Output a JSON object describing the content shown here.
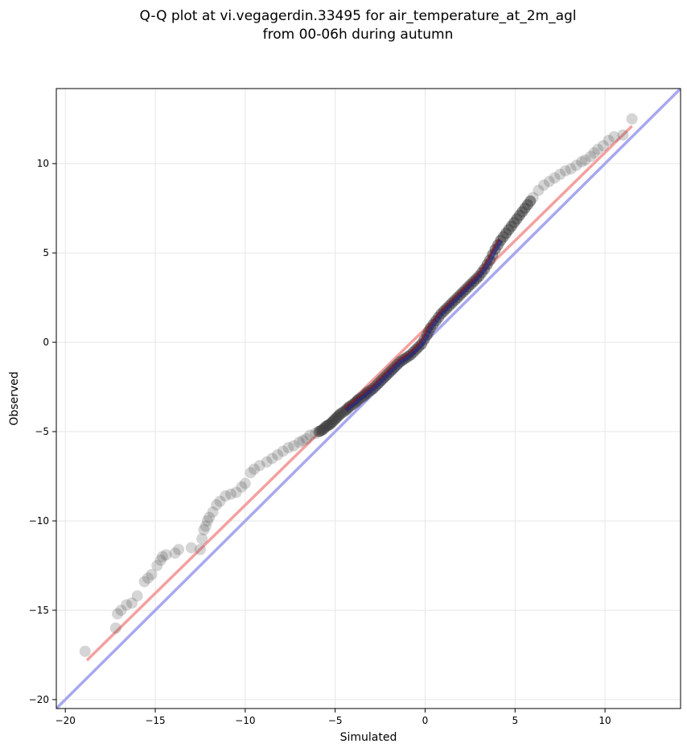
{
  "chart_data": {
    "type": "scatter",
    "title": "Q-Q plot at vi.vegagerdin.33495 for air_temperature_at_2m_agl",
    "subtitle": "from 00-06h during autumn",
    "xlabel": "Simulated",
    "ylabel": "Observed",
    "xlim": [
      -20.5,
      14.2
    ],
    "ylim": [
      -20.5,
      14.2
    ],
    "xticks": [
      -20,
      -15,
      -10,
      -5,
      0,
      5,
      10
    ],
    "yticks": [
      -20,
      -15,
      -10,
      -5,
      0,
      5,
      10
    ],
    "xtick_labels": [
      "−20",
      "−15",
      "−10",
      "−5",
      "0",
      "5",
      "10"
    ],
    "ytick_labels": [
      "−20",
      "−15",
      "−10",
      "−5",
      "0",
      "5",
      "10"
    ],
    "grid": true,
    "colors": {
      "points": "#404040",
      "fit_line": "#f4a0a0",
      "identity_line": "#a8a8f0",
      "center_overlay_red": "#8b1a1a",
      "center_overlay_blue": "#1a1a8b"
    },
    "reference_lines": [
      {
        "kind": "identity",
        "x": [
          -20.5,
          14.2
        ],
        "y": [
          -20.5,
          14.2
        ]
      },
      {
        "kind": "fit",
        "x": [
          -18.8,
          11.5
        ],
        "y": [
          -17.8,
          12.1
        ]
      }
    ],
    "series": [
      {
        "x": [
          -18.9,
          -17.2,
          -17.1,
          -16.9,
          -16.6,
          -16.3,
          -16.0,
          -15.6,
          -15.4,
          -15.2,
          -14.9,
          -14.7,
          -14.6,
          -14.4,
          -13.9,
          -13.7,
          -13.0,
          -12.5,
          -12.4,
          -12.3,
          -12.2,
          -12.1,
          -12.0,
          -11.8,
          -11.6,
          -11.4,
          -11.1,
          -10.8,
          -10.5,
          -10.2,
          -10.0,
          -9.7,
          -9.5,
          -9.2,
          -8.8,
          -8.5,
          -8.2,
          -7.9,
          -7.6,
          -7.3,
          -7.0,
          -6.8,
          -6.6,
          -6.4,
          -6.1,
          -5.9,
          -5.7,
          -5.5,
          -5.3,
          -5.1,
          -4.9,
          -4.7,
          -4.4,
          -4.2,
          -3.9,
          -3.7,
          -3.4,
          -3.2,
          -2.9,
          -2.6,
          -2.3,
          -2.0,
          -1.7,
          -1.4,
          -1.1,
          -0.8,
          -0.5,
          -0.2,
          0.1,
          0.3,
          0.6,
          0.9,
          1.2,
          1.5,
          1.8,
          2.1,
          2.4,
          2.7,
          3.0,
          3.3,
          3.6,
          3.9,
          4.2,
          4.5,
          4.8,
          5.1,
          5.4,
          5.7,
          6.0,
          6.3,
          6.6,
          6.9,
          7.2,
          7.5,
          7.8,
          8.1,
          8.4,
          8.7,
          8.9,
          9.2,
          9.4,
          9.6,
          9.9,
          10.2,
          10.5,
          11.0,
          11.5
        ],
        "y": [
          -17.3,
          -16.0,
          -15.2,
          -15.0,
          -14.7,
          -14.6,
          -14.2,
          -13.4,
          -13.2,
          -13.0,
          -12.5,
          -12.2,
          -12.0,
          -11.9,
          -11.8,
          -11.6,
          -11.5,
          -11.6,
          -11.0,
          -10.5,
          -10.3,
          -10.0,
          -9.8,
          -9.5,
          -9.1,
          -8.9,
          -8.6,
          -8.5,
          -8.4,
          -8.1,
          -7.9,
          -7.3,
          -7.1,
          -6.9,
          -6.7,
          -6.5,
          -6.3,
          -6.1,
          -5.9,
          -5.8,
          -5.6,
          -5.5,
          -5.4,
          -5.2,
          -5.1,
          -5.0,
          -4.9,
          -4.7,
          -4.6,
          -4.4,
          -4.2,
          -4.0,
          -3.8,
          -3.6,
          -3.4,
          -3.2,
          -3.0,
          -2.8,
          -2.6,
          -2.3,
          -2.0,
          -1.7,
          -1.4,
          -1.1,
          -0.9,
          -0.7,
          -0.4,
          -0.1,
          0.4,
          0.8,
          1.2,
          1.6,
          1.9,
          2.2,
          2.5,
          2.8,
          3.1,
          3.4,
          3.7,
          4.1,
          4.6,
          5.2,
          5.7,
          6.1,
          6.5,
          6.9,
          7.3,
          7.7,
          8.1,
          8.5,
          8.8,
          9.0,
          9.2,
          9.4,
          9.6,
          9.7,
          9.9,
          10.1,
          10.2,
          10.4,
          10.6,
          10.8,
          11.0,
          11.3,
          11.5,
          11.6,
          12.5
        ]
      }
    ]
  }
}
